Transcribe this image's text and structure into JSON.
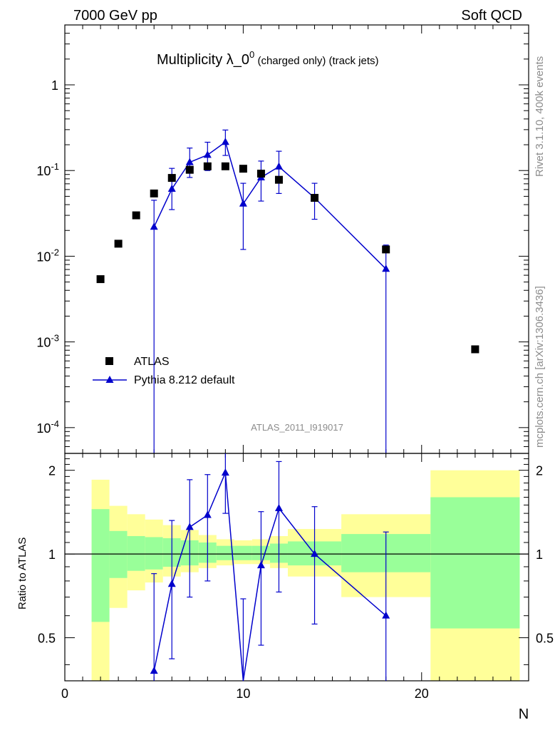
{
  "header": {
    "left": "7000 GeV pp",
    "right": "Soft QCD"
  },
  "side_labels": {
    "rivet": "Rivet 3.1.10,  400k events",
    "mcplots": "mcplots.cern.ch [arXiv:1306.3436]"
  },
  "analysis_id": "ATLAS_2011_I919017",
  "chart_data": {
    "type": "scatter",
    "title": "Multiplicity λ_0",
    "title_sup": "0",
    "title_suffix": " (charged only) (track jets)",
    "xlabel": "N",
    "ylabel_ratio": "Ratio to ATLAS",
    "xlim": [
      0,
      26
    ],
    "ylim": [
      5e-05,
      5
    ],
    "ylog": true,
    "ratio_ylim": [
      0.35,
      2.3
    ],
    "x_ticks": [
      "0",
      "10",
      "20"
    ],
    "y_ticks": [
      "10^-4",
      "10^-3",
      "10^-2",
      "10^-1",
      "1"
    ],
    "ratio_ticks": [
      "0.5",
      "1",
      "2"
    ],
    "legend_position": "lower-left",
    "series": [
      {
        "name": "ATLAS",
        "marker": "square",
        "color": "#000000",
        "x": [
          2,
          3,
          4,
          5,
          6,
          7,
          8,
          9,
          10,
          11,
          12,
          14,
          18,
          23
        ],
        "y": [
          0.0054,
          0.014,
          0.03,
          0.054,
          0.082,
          0.102,
          0.112,
          0.112,
          0.105,
          0.092,
          0.078,
          0.048,
          0.012,
          0.00082
        ]
      },
      {
        "name": "Pythia 8.212 default",
        "marker": "triangle",
        "color": "#0000cc",
        "x": [
          5,
          6,
          7,
          8,
          9,
          10,
          11,
          12,
          14,
          18
        ],
        "y": [
          0.022,
          0.061,
          0.125,
          0.152,
          0.215,
          0.041,
          0.083,
          0.111,
          0.048,
          0.0071
        ],
        "y_low": [
          1e-05,
          0.035,
          0.083,
          0.1,
          0.15,
          0.012,
          0.044,
          0.054,
          0.027,
          1e-05
        ],
        "y_high": [
          0.045,
          0.106,
          0.183,
          0.214,
          0.297,
          0.071,
          0.129,
          0.168,
          0.071,
          0.0135
        ]
      }
    ],
    "ratio": {
      "x": [
        5,
        6,
        7,
        8,
        9,
        10,
        11,
        12,
        14,
        18
      ],
      "y": [
        0.38,
        0.78,
        1.25,
        1.38,
        1.96,
        0.35,
        0.91,
        1.46,
        1.0,
        0.6
      ],
      "y_low": [
        0.2,
        0.42,
        0.7,
        0.8,
        1.4,
        0.2,
        0.47,
        0.73,
        0.56,
        0.2
      ],
      "y_high": [
        0.85,
        1.32,
        1.85,
        1.93,
        2.5,
        0.69,
        1.42,
        2.15,
        1.48,
        1.2
      ]
    },
    "bands": [
      {
        "x0": 1.5,
        "x1": 2.5,
        "y_lo": 0.2,
        "y_hi": 1.85,
        "g_lo": 0.57,
        "g_hi": 1.45
      },
      {
        "x0": 2.5,
        "x1": 3.5,
        "y_lo": 0.64,
        "y_hi": 1.49,
        "g_lo": 0.82,
        "g_hi": 1.21
      },
      {
        "x0": 3.5,
        "x1": 4.5,
        "y_lo": 0.74,
        "y_hi": 1.39,
        "g_lo": 0.87,
        "g_hi": 1.16
      },
      {
        "x0": 4.5,
        "x1": 5.5,
        "y_lo": 0.79,
        "y_hi": 1.33,
        "g_lo": 0.88,
        "g_hi": 1.15
      },
      {
        "x0": 5.5,
        "x1": 6.5,
        "y_lo": 0.83,
        "y_hi": 1.27,
        "g_lo": 0.9,
        "g_hi": 1.14
      },
      {
        "x0": 6.5,
        "x1": 7.5,
        "y_lo": 0.86,
        "y_hi": 1.22,
        "g_lo": 0.91,
        "g_hi": 1.12
      },
      {
        "x0": 7.5,
        "x1": 8.5,
        "y_lo": 0.89,
        "y_hi": 1.17,
        "g_lo": 0.93,
        "g_hi": 1.1
      },
      {
        "x0": 8.5,
        "x1": 9.5,
        "y_lo": 0.91,
        "y_hi": 1.13,
        "g_lo": 0.95,
        "g_hi": 1.07
      },
      {
        "x0": 9.5,
        "x1": 10.5,
        "y_lo": 0.92,
        "y_hi": 1.12,
        "g_lo": 0.95,
        "g_hi": 1.07
      },
      {
        "x0": 10.5,
        "x1": 11.5,
        "y_lo": 0.92,
        "y_hi": 1.13,
        "g_lo": 0.95,
        "g_hi": 1.07
      },
      {
        "x0": 11.5,
        "x1": 12.5,
        "y_lo": 0.89,
        "y_hi": 1.16,
        "g_lo": 0.93,
        "g_hi": 1.09
      },
      {
        "x0": 12.5,
        "x1": 15.5,
        "y_lo": 0.83,
        "y_hi": 1.23,
        "g_lo": 0.91,
        "g_hi": 1.11
      },
      {
        "x0": 15.5,
        "x1": 20.5,
        "y_lo": 0.7,
        "y_hi": 1.39,
        "g_lo": 0.86,
        "g_hi": 1.18
      },
      {
        "x0": 20.5,
        "x1": 25.5,
        "y_lo": 0.2,
        "y_hi": 2.0,
        "g_lo": 0.54,
        "g_hi": 1.6
      }
    ]
  },
  "colors": {
    "yellow_band": "#ffff99",
    "green_band": "#99ff99",
    "pythia": "#0000cc",
    "atlas": "#000000"
  }
}
